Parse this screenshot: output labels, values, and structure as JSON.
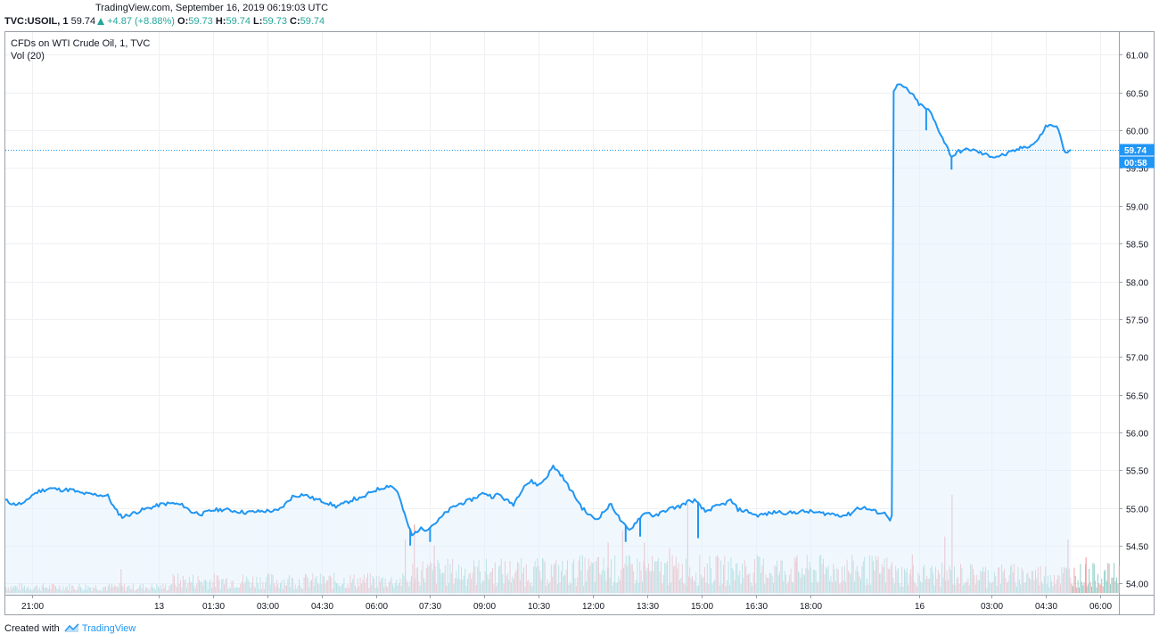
{
  "header": {
    "source_line": "TradingView.com, September 16, 2019 06:19:03 UTC",
    "symbol": "TVC:USOIL, 1",
    "last": "59.74",
    "change": "+4.87 (+8.88%)",
    "o_label": "O:",
    "o_value": "59.73",
    "h_label": "H:",
    "h_value": "59.74",
    "l_label": "L:",
    "l_value": "59.73",
    "c_label": "C:",
    "c_value": "59.74"
  },
  "legend": {
    "title": "CFDs on WTI Crude Oil, 1, TVC",
    "volume": "Vol (20)"
  },
  "price_badge": {
    "value": "59.74",
    "countdown": "00:58"
  },
  "footer": {
    "prefix": "Created with",
    "brand": "TradingView"
  },
  "colors": {
    "line": "#2196f3",
    "area": "#e3f2fd",
    "vol_up": "#8fcfc7",
    "vol_down": "#f0a3a8",
    "grid": "#eef0f3"
  },
  "chart_data": {
    "type": "area",
    "title": "CFDs on WTI Crude Oil, 1, TVC",
    "series_name": "TVC:USOIL",
    "ylim": [
      53.85,
      61.3
    ],
    "y_ticks": [
      "61.00",
      "60.50",
      "60.00",
      "59.50",
      "59.00",
      "58.50",
      "58.00",
      "57.50",
      "57.00",
      "56.50",
      "56.00",
      "55.50",
      "55.00",
      "54.50",
      "54.00"
    ],
    "x_ticks": [
      {
        "label": "21:00",
        "t": 1.0
      },
      {
        "label": "13",
        "t": 4.5
      },
      {
        "label": "01:30",
        "t": 6.0
      },
      {
        "label": "03:00",
        "t": 7.5
      },
      {
        "label": "04:30",
        "t": 9.0
      },
      {
        "label": "06:00",
        "t": 10.5
      },
      {
        "label": "07:30",
        "t": 12.0
      },
      {
        "label": "09:00",
        "t": 13.5
      },
      {
        "label": "10:30",
        "t": 15.0
      },
      {
        "label": "12:00",
        "t": 16.5
      },
      {
        "label": "13:30",
        "t": 18.0
      },
      {
        "label": "15:00",
        "t": 19.5
      },
      {
        "label": "16:30",
        "t": 21.0
      },
      {
        "label": "18:00",
        "t": 22.5
      },
      {
        "label": "16",
        "t": 25.5
      },
      {
        "label": "03:00",
        "t": 27.5
      },
      {
        "label": "04:30",
        "t": 29.0
      },
      {
        "label": "06:00",
        "t": 30.5
      }
    ],
    "x_range": [
      0.27,
      31.02
    ],
    "price_points": [
      [
        0.27,
        55.1
      ],
      [
        0.5,
        55.05
      ],
      [
        0.8,
        55.06
      ],
      [
        1.0,
        55.17
      ],
      [
        1.2,
        55.22
      ],
      [
        1.5,
        55.26
      ],
      [
        1.8,
        55.24
      ],
      [
        2.1,
        55.24
      ],
      [
        2.3,
        55.2
      ],
      [
        2.6,
        55.18
      ],
      [
        2.9,
        55.17
      ],
      [
        3.1,
        55.16
      ],
      [
        3.3,
        54.98
      ],
      [
        3.5,
        54.88
      ],
      [
        3.8,
        54.93
      ],
      [
        4.1,
        54.98
      ],
      [
        4.4,
        55.02
      ],
      [
        4.6,
        55.05
      ],
      [
        4.9,
        55.06
      ],
      [
        5.2,
        55.03
      ],
      [
        5.4,
        54.95
      ],
      [
        5.7,
        54.92
      ],
      [
        6.0,
        54.97
      ],
      [
        6.3,
        54.98
      ],
      [
        6.6,
        54.96
      ],
      [
        6.9,
        54.94
      ],
      [
        7.2,
        54.95
      ],
      [
        7.5,
        54.96
      ],
      [
        7.8,
        54.96
      ],
      [
        8.0,
        55.05
      ],
      [
        8.2,
        55.15
      ],
      [
        8.5,
        55.18
      ],
      [
        8.8,
        55.12
      ],
      [
        9.1,
        55.08
      ],
      [
        9.4,
        55.02
      ],
      [
        9.6,
        55.05
      ],
      [
        9.9,
        55.12
      ],
      [
        10.1,
        55.12
      ],
      [
        10.4,
        55.22
      ],
      [
        10.7,
        55.27
      ],
      [
        10.9,
        55.3
      ],
      [
        11.1,
        55.22
      ],
      [
        11.3,
        54.9
      ],
      [
        11.5,
        54.63
      ],
      [
        11.7,
        54.72
      ],
      [
        11.9,
        54.72
      ],
      [
        12.2,
        54.82
      ],
      [
        12.4,
        54.92
      ],
      [
        12.6,
        55.0
      ],
      [
        12.8,
        55.05
      ],
      [
        13.1,
        55.1
      ],
      [
        13.3,
        55.15
      ],
      [
        13.5,
        55.2
      ],
      [
        13.7,
        55.15
      ],
      [
        13.9,
        55.18
      ],
      [
        14.1,
        55.1
      ],
      [
        14.3,
        55.05
      ],
      [
        14.6,
        55.3
      ],
      [
        14.8,
        55.35
      ],
      [
        15.0,
        55.3
      ],
      [
        15.2,
        55.4
      ],
      [
        15.4,
        55.55
      ],
      [
        15.6,
        55.45
      ],
      [
        15.8,
        55.3
      ],
      [
        16.0,
        55.15
      ],
      [
        16.2,
        55.0
      ],
      [
        16.4,
        54.9
      ],
      [
        16.6,
        54.85
      ],
      [
        16.8,
        54.95
      ],
      [
        17.0,
        55.05
      ],
      [
        17.3,
        54.8
      ],
      [
        17.5,
        54.7
      ],
      [
        17.8,
        54.88
      ],
      [
        18.0,
        54.95
      ],
      [
        18.2,
        54.88
      ],
      [
        18.5,
        54.97
      ],
      [
        18.7,
        55.0
      ],
      [
        18.9,
        55.02
      ],
      [
        19.1,
        55.08
      ],
      [
        19.3,
        55.1
      ],
      [
        19.6,
        54.95
      ],
      [
        19.8,
        55.0
      ],
      [
        20.1,
        55.05
      ],
      [
        20.3,
        55.1
      ],
      [
        20.5,
        54.98
      ],
      [
        20.8,
        54.95
      ],
      [
        21.0,
        54.9
      ],
      [
        21.3,
        54.92
      ],
      [
        21.6,
        54.95
      ],
      [
        21.9,
        54.93
      ],
      [
        22.2,
        54.95
      ],
      [
        22.5,
        54.95
      ],
      [
        22.8,
        54.93
      ],
      [
        23.1,
        54.92
      ],
      [
        23.4,
        54.9
      ],
      [
        23.6,
        54.92
      ],
      [
        23.8,
        55.0
      ],
      [
        24.0,
        55.0
      ],
      [
        24.3,
        54.95
      ],
      [
        24.6,
        54.92
      ],
      [
        24.7,
        54.85
      ],
      [
        24.75,
        54.9
      ],
      [
        24.8,
        60.5
      ],
      [
        24.9,
        60.6
      ],
      [
        25.1,
        60.57
      ],
      [
        25.3,
        60.48
      ],
      [
        25.5,
        60.35
      ],
      [
        25.8,
        60.25
      ],
      [
        26.0,
        60.05
      ],
      [
        26.2,
        59.85
      ],
      [
        26.4,
        59.65
      ],
      [
        26.6,
        59.72
      ],
      [
        26.9,
        59.75
      ],
      [
        27.1,
        59.72
      ],
      [
        27.3,
        59.68
      ],
      [
        27.6,
        59.65
      ],
      [
        27.9,
        59.68
      ],
      [
        28.1,
        59.72
      ],
      [
        28.4,
        59.78
      ],
      [
        28.6,
        59.8
      ],
      [
        28.8,
        59.88
      ],
      [
        29.0,
        60.05
      ],
      [
        29.2,
        60.07
      ],
      [
        29.35,
        60.02
      ],
      [
        29.5,
        59.72
      ],
      [
        29.7,
        59.74
      ]
    ],
    "spikes": [
      {
        "t": 11.45,
        "low": 54.5
      },
      {
        "t": 12.0,
        "low": 54.55
      },
      {
        "t": 17.4,
        "low": 54.55
      },
      {
        "t": 17.8,
        "low": 54.62
      },
      {
        "t": 19.4,
        "low": 54.6
      },
      {
        "t": 26.4,
        "low": 59.48
      },
      {
        "t": 25.7,
        "low": 60.0
      }
    ],
    "last_price": 59.74,
    "volume_ylim": [
      0,
      18
    ],
    "volume_bands": [
      {
        "from": 0.27,
        "to": 4.8,
        "level": 1.0
      },
      {
        "from": 4.8,
        "to": 11.5,
        "level": 2.0
      },
      {
        "from": 11.5,
        "to": 16.0,
        "level": 3.5
      },
      {
        "from": 16.0,
        "to": 24.8,
        "level": 3.8
      },
      {
        "from": 24.8,
        "to": 31.02,
        "level": 3.0
      }
    ],
    "volume_spikes": [
      {
        "t": 3.45,
        "v": 4.0
      },
      {
        "t": 11.3,
        "v": 9.0
      },
      {
        "t": 11.55,
        "v": 11.5
      },
      {
        "t": 12.1,
        "v": 8.0
      },
      {
        "t": 16.9,
        "v": 8.5
      },
      {
        "t": 17.3,
        "v": 10.5
      },
      {
        "t": 17.9,
        "v": 8.5
      },
      {
        "t": 18.6,
        "v": 7.5
      },
      {
        "t": 19.1,
        "v": 15.0
      },
      {
        "t": 22.1,
        "v": 6.0
      },
      {
        "t": 25.3,
        "v": 6.5
      },
      {
        "t": 26.4,
        "v": 16.5
      },
      {
        "t": 26.2,
        "v": 9.5
      },
      {
        "t": 29.6,
        "v": 9.0
      },
      {
        "t": 30.1,
        "v": 6.0
      }
    ]
  }
}
